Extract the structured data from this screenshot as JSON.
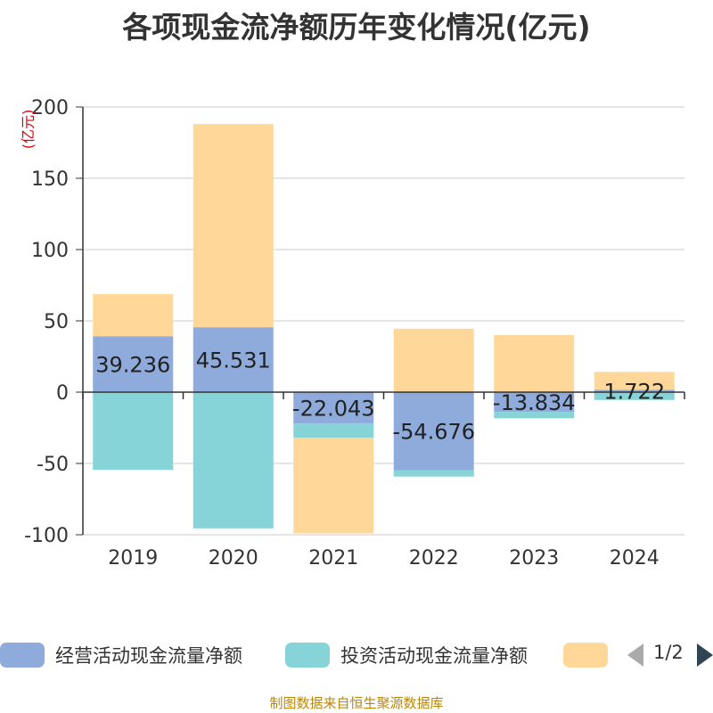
{
  "title": "各项现金流净额历年变化情况(亿元)",
  "source": "制图数据来自恒生聚源数据库",
  "legend": {
    "items": [
      {
        "label": "经营活动现金流量净额",
        "color": "#8fabdb"
      },
      {
        "label": "投资活动现金流量净额",
        "color": "#86d4d8"
      },
      {
        "label": "",
        "color": "#ffd899"
      }
    ],
    "page": "1/2"
  },
  "chart_data": {
    "type": "bar",
    "stacked": true,
    "unit_label": "(亿元)",
    "categories": [
      "2019",
      "2020",
      "2021",
      "2022",
      "2023",
      "2024"
    ],
    "ylim": [
      -100,
      200
    ],
    "yticks": [
      -100,
      -50,
      0,
      50,
      100,
      150,
      200
    ],
    "grid": true,
    "series": [
      {
        "name": "经营活动现金流量净额",
        "color": "#8fabdb",
        "values": [
          39.236,
          45.531,
          -22.043,
          -54.676,
          -13.834,
          1.722
        ],
        "labels": [
          "39.236",
          "45.531",
          "-22.043",
          "-54.676",
          "-13.834",
          "1.722"
        ]
      },
      {
        "name": "投资活动现金流量净额",
        "color": "#86d4d8",
        "values": [
          -54.5,
          -95.5,
          -10.0,
          -4.5,
          -4.5,
          -5.5
        ]
      },
      {
        "name": "",
        "color": "#ffd899",
        "values": [
          29.5,
          142.5,
          -67.0,
          44.5,
          40.0,
          12.5
        ]
      }
    ]
  }
}
